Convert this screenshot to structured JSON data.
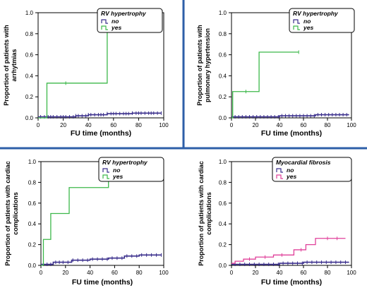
{
  "colors": {
    "divider": "#2e5fa8",
    "no": "#3a2f8c",
    "yes_green": "#3cb84a",
    "yes_pink": "#e0409a",
    "tick": "#9aa0b4"
  },
  "chart_data": [
    {
      "type": "line",
      "step": true,
      "ylabel": [
        "Proportion of patients with",
        "arrhytmias"
      ],
      "xlabel": "FU time (months)",
      "xticks": [
        0,
        20,
        40,
        60,
        80,
        100
      ],
      "yticks": [
        "0.0",
        "0.2",
        "0.4",
        "0.6",
        "0.8",
        "1.0"
      ],
      "xlim": [
        0,
        100
      ],
      "ylim": [
        0,
        1
      ],
      "legend_title": "RV hypertrophy",
      "series": [
        {
          "name": "no",
          "color_key": "no",
          "x": [
            0,
            30,
            40,
            55,
            75,
            98
          ],
          "y": [
            0.01,
            0.02,
            0.03,
            0.04,
            0.045,
            0.045
          ],
          "censor_x": [
            2,
            5,
            8,
            10,
            12,
            15,
            18,
            20,
            22,
            25,
            28,
            30,
            32,
            35,
            38,
            40,
            42,
            45,
            48,
            50,
            52,
            55,
            58,
            60,
            62,
            65,
            68,
            70,
            72,
            75,
            78,
            80,
            82,
            85,
            88,
            90,
            92,
            95,
            98
          ]
        },
        {
          "name": "yes",
          "color_key": "yes_green",
          "x": [
            0,
            7,
            55,
            55
          ],
          "y": [
            0,
            0.33,
            1.0,
            1.0
          ],
          "censor_x": [
            22
          ]
        }
      ]
    },
    {
      "type": "line",
      "step": true,
      "ylabel": [
        "Proportion of patients with",
        "pulmonary hypertension"
      ],
      "xlabel": "FU time (months)",
      "xticks": [
        0,
        20,
        40,
        60,
        80,
        100
      ],
      "yticks": [
        "0.0",
        "0.2",
        "0.4",
        "0.6",
        "0.8",
        "1.0"
      ],
      "xlim": [
        0,
        100
      ],
      "ylim": [
        0,
        1
      ],
      "legend_title": "RV hypertrophy",
      "series": [
        {
          "name": "no",
          "color_key": "no",
          "x": [
            0,
            40,
            70,
            98
          ],
          "y": [
            0.01,
            0.02,
            0.03,
            0.03
          ],
          "censor_x": [
            3,
            6,
            9,
            12,
            15,
            18,
            21,
            24,
            27,
            30,
            33,
            36,
            39,
            42,
            45,
            48,
            51,
            54,
            57,
            60,
            63,
            66,
            69,
            72,
            75,
            78,
            81,
            84,
            87,
            90,
            93,
            96
          ]
        },
        {
          "name": "yes",
          "color_key": "yes_green",
          "x": [
            0,
            1,
            23,
            56
          ],
          "y": [
            0,
            0.25,
            0.625,
            0.625
          ],
          "censor_x": [
            12,
            56
          ]
        }
      ]
    },
    {
      "type": "line",
      "step": true,
      "ylabel": [
        "Proportion of patients with cardiac",
        "complications"
      ],
      "xlabel": "FU time (months)",
      "xticks": [
        0,
        20,
        40,
        60,
        80,
        100
      ],
      "yticks": [
        "0.0",
        "0.2",
        "0.4",
        "0.6",
        "0.8",
        "1.0"
      ],
      "xlim": [
        0,
        100
      ],
      "ylim": [
        0,
        1
      ],
      "legend_title": "RV hypertrophy",
      "series": [
        {
          "name": "no",
          "color_key": "no",
          "x": [
            0,
            10,
            25,
            40,
            55,
            68,
            80,
            98
          ],
          "y": [
            0.01,
            0.03,
            0.05,
            0.06,
            0.07,
            0.09,
            0.1,
            0.1
          ],
          "censor_x": [
            2,
            5,
            8,
            12,
            15,
            18,
            22,
            26,
            30,
            34,
            38,
            42,
            46,
            50,
            54,
            58,
            62,
            66,
            70,
            74,
            78,
            82,
            86,
            90,
            94,
            98
          ]
        },
        {
          "name": "yes",
          "color_key": "yes_green",
          "x": [
            0,
            2,
            8,
            23,
            55,
            55
          ],
          "y": [
            0,
            0.25,
            0.5,
            0.75,
            1.0,
            1.0
          ],
          "censor_x": []
        }
      ]
    },
    {
      "type": "line",
      "step": true,
      "ylabel": [
        "Proportion of patients with cardiac",
        "complications"
      ],
      "xlabel": "FU time (months)",
      "xticks": [
        0,
        20,
        40,
        60,
        80,
        100
      ],
      "yticks": [
        "0.0",
        "0.2",
        "0.4",
        "0.6",
        "0.8",
        "1.0"
      ],
      "xlim": [
        0,
        100
      ],
      "ylim": [
        0,
        1
      ],
      "legend_title": "Myocardial fibrosis",
      "series": [
        {
          "name": "no",
          "color_key": "no",
          "x": [
            0,
            40,
            60,
            98
          ],
          "y": [
            0.01,
            0.02,
            0.03,
            0.03
          ],
          "censor_x": [
            3,
            7,
            11,
            15,
            19,
            23,
            27,
            31,
            35,
            39,
            43,
            47,
            51,
            55,
            59,
            63,
            67,
            71,
            75,
            79,
            83,
            87,
            91,
            95
          ]
        },
        {
          "name": "yes",
          "color_key": "yes_pink",
          "x": [
            0,
            3,
            10,
            20,
            35,
            52,
            62,
            70,
            95
          ],
          "y": [
            0.02,
            0.04,
            0.06,
            0.08,
            0.1,
            0.15,
            0.2,
            0.26,
            0.26
          ],
          "censor_x": [
            15,
            28,
            42,
            58,
            80,
            88
          ]
        }
      ]
    }
  ]
}
